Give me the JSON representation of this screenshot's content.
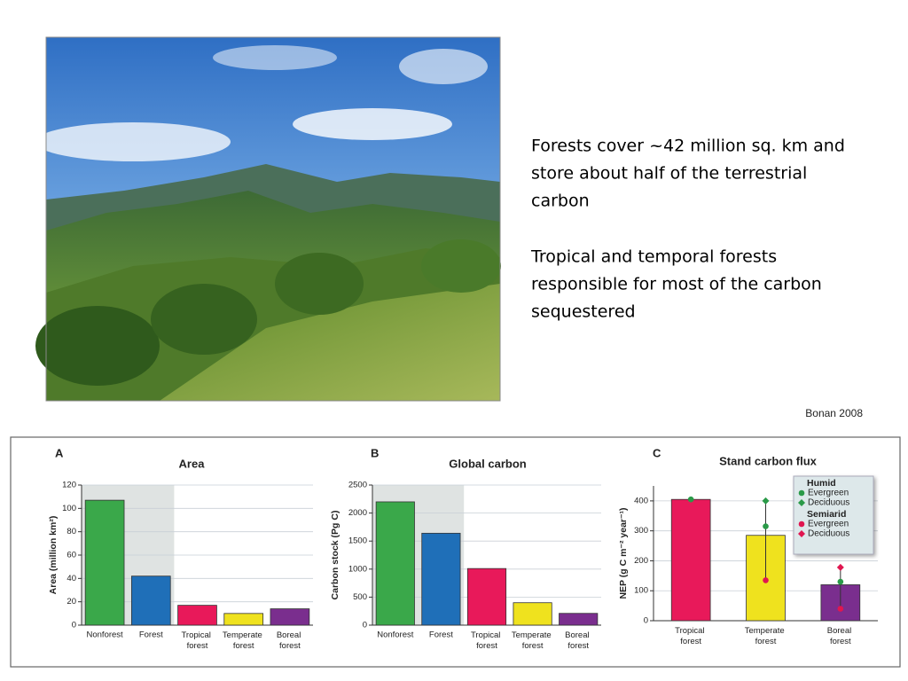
{
  "slide": {
    "paragraphs": [
      [
        "Forests cover ~42 million sq. km and",
        "store about half of the terrestrial",
        "carbon"
      ],
      [
        "Tropical and temporal forests",
        "responsible for most of the carbon",
        "sequestered"
      ]
    ],
    "citation": "Bonan 2008"
  },
  "chart_data": [
    {
      "type": "bar",
      "panel": "A",
      "title": "Area",
      "y_label": "Area (million km²)",
      "categories": [
        "Nonforest",
        "Forest",
        "Tropical forest",
        "Temperate forest",
        "Boreal forest"
      ],
      "values": [
        107,
        42,
        17,
        10,
        14
      ],
      "colors": [
        "#3aa84a",
        "#1f6fb8",
        "#e8195a",
        "#efe21e",
        "#7a2e8e"
      ],
      "ylim": [
        0,
        120
      ],
      "yticks": [
        0,
        20,
        40,
        60,
        80,
        100,
        120
      ],
      "grid": true
    },
    {
      "type": "bar",
      "panel": "B",
      "title": "Global carbon",
      "y_label": "Carbon stock (Pg C)",
      "categories": [
        "Nonforest",
        "Forest",
        "Tropical forest",
        "Temperate forest",
        "Boreal forest"
      ],
      "values": [
        2200,
        1640,
        1010,
        400,
        210
      ],
      "colors": [
        "#3aa84a",
        "#1f6fb8",
        "#e8195a",
        "#efe21e",
        "#7a2e8e"
      ],
      "ylim": [
        0,
        2500
      ],
      "yticks": [
        0,
        500,
        1000,
        1500,
        2000,
        2500
      ],
      "grid": true
    },
    {
      "type": "bar-dot",
      "panel": "C",
      "title": "Stand carbon flux",
      "y_label": "NEP (g C m⁻² year⁻¹)",
      "categories": [
        "Tropical forest",
        "Temperate forest",
        "Boreal forest"
      ],
      "values": [
        405,
        285,
        120
      ],
      "colors": [
        "#e8195a",
        "#efe21e",
        "#7a2e8e"
      ],
      "ylim": [
        0,
        450
      ],
      "yticks": [
        0,
        100,
        200,
        300,
        400
      ],
      "grid": true,
      "groups": [
        {
          "name": "Humid",
          "series": [
            {
              "name": "Evergreen",
              "color": "#2a9a48",
              "marker": "circle",
              "values": [
                405,
                315,
                130
              ]
            },
            {
              "name": "Deciduous",
              "color": "#2a9a48",
              "marker": "diamond",
              "values": [
                null,
                400,
                null
              ]
            }
          ]
        },
        {
          "name": "Semiarid",
          "series": [
            {
              "name": "Evergreen",
              "color": "#e01650",
              "marker": "circle",
              "values": [
                null,
                135,
                40
              ]
            },
            {
              "name": "Deciduous",
              "color": "#e01650",
              "marker": "diamond",
              "values": [
                null,
                null,
                178
              ]
            }
          ]
        }
      ]
    }
  ]
}
